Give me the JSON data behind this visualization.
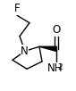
{
  "bg_color": "#ffffff",
  "atom_color": "#000000",
  "bond_color": "#000000",
  "label_F": "F",
  "label_N": "N",
  "label_O": "O",
  "label_NH2": "NH",
  "label_2": "2",
  "figsize": [
    0.85,
    1.02
  ],
  "dpi": 100,
  "font_size_atoms": 8.5,
  "font_size_small": 6.5,
  "lw": 1.0
}
